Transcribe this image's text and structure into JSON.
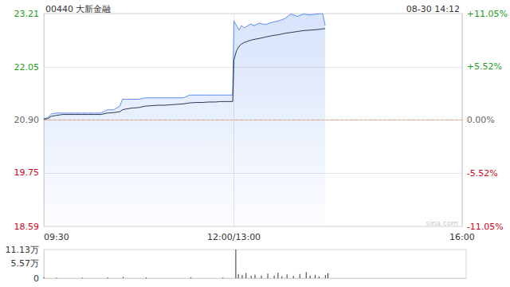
{
  "chart_data": [
    {
      "type": "line",
      "title": "00440 大新金融",
      "annotations": [
        "08-30 14:12",
        "sina.com"
      ],
      "x": [
        0,
        3,
        6,
        10,
        15,
        20,
        25,
        30,
        35,
        40,
        45,
        50,
        55,
        60,
        62,
        65,
        70,
        75,
        80,
        85,
        90,
        95,
        100,
        105,
        110,
        115,
        120,
        125,
        130,
        135,
        140,
        145,
        149,
        150,
        152,
        154,
        156,
        158,
        160,
        163,
        166,
        170,
        175,
        180,
        185,
        190,
        195,
        200,
        205,
        210,
        215,
        218,
        220,
        222
      ],
      "xlim": [
        0,
        330
      ],
      "xticks": [
        {
          "value": 0,
          "label": "09:30"
        },
        {
          "value": 150,
          "label": "12:00/13:00"
        },
        {
          "value": 330,
          "label": "16:00"
        }
      ],
      "ylim": [
        18.59,
        23.21
      ],
      "yticks": [
        18.59,
        19.75,
        {
          "value": 20.9,
          "label": "20.90"
        },
        22.05,
        23.21
      ],
      "y2lim": [
        -11.05,
        11.05
      ],
      "y2ticks": [
        {
          "value": -11.05,
          "label": "-11.05%"
        },
        {
          "value": -5.52,
          "label": "-5.52%"
        },
        {
          "value": 0,
          "label": "0.00%"
        },
        {
          "value": 5.52,
          "label": "+5.52%"
        },
        {
          "value": 11.05,
          "label": "+11.05%"
        }
      ],
      "grid": true,
      "series": [
        {
          "color": "#5b8ef0",
          "values": [
            20.93,
            20.95,
            21.03,
            21.05,
            21.05,
            21.05,
            21.05,
            21.05,
            21.05,
            21.05,
            21.05,
            21.12,
            21.12,
            21.2,
            21.35,
            21.35,
            21.35,
            21.35,
            21.38,
            21.38,
            21.38,
            21.38,
            21.38,
            21.38,
            21.38,
            21.44,
            21.44,
            21.44,
            21.44,
            21.44,
            21.44,
            21.44,
            21.44,
            23.05,
            22.95,
            22.85,
            22.95,
            22.9,
            22.93,
            22.98,
            22.95,
            23.0,
            22.97,
            23.02,
            23.05,
            23.1,
            23.2,
            23.15,
            23.2,
            23.18,
            23.2,
            23.21,
            23.21,
            22.95
          ]
        },
        {
          "color": "#2b3a55",
          "values": [
            20.92,
            20.93,
            20.98,
            21.0,
            21.02,
            21.02,
            21.02,
            21.02,
            21.02,
            21.02,
            21.02,
            21.05,
            21.06,
            21.08,
            21.12,
            21.14,
            21.16,
            21.17,
            21.2,
            21.21,
            21.22,
            21.22,
            21.23,
            21.24,
            21.25,
            21.27,
            21.28,
            21.28,
            21.29,
            21.29,
            21.3,
            21.3,
            21.3,
            22.2,
            22.4,
            22.5,
            22.55,
            22.58,
            22.6,
            22.63,
            22.65,
            22.67,
            22.7,
            22.73,
            22.75,
            22.78,
            22.8,
            22.82,
            22.84,
            22.85,
            22.86,
            22.87,
            22.88,
            22.88
          ]
        }
      ]
    },
    {
      "type": "bar",
      "x": [
        0,
        10,
        30,
        50,
        62,
        80,
        115,
        140,
        150,
        152,
        155,
        158,
        162,
        165,
        170,
        175,
        180,
        183,
        186,
        190,
        195,
        200,
        205,
        208,
        212,
        215,
        220,
        222
      ],
      "values": [
        0.4,
        0.2,
        0.2,
        0.3,
        0.5,
        0.3,
        0.4,
        0.3,
        11.13,
        1.6,
        1.2,
        2.0,
        0.9,
        1.4,
        1.0,
        1.8,
        1.1,
        2.2,
        0.8,
        1.5,
        0.9,
        1.6,
        2.4,
        1.0,
        1.3,
        0.7,
        1.2,
        1.9
      ],
      "color": "#333333",
      "xlim": [
        0,
        330
      ],
      "ylim": [
        0,
        11.13
      ],
      "yticks": [
        0,
        {
          "value": 5.57,
          "label": "5.57万"
        },
        {
          "value": 11.13,
          "label": "11.13万"
        }
      ],
      "tick_labels": "y"
    }
  ]
}
